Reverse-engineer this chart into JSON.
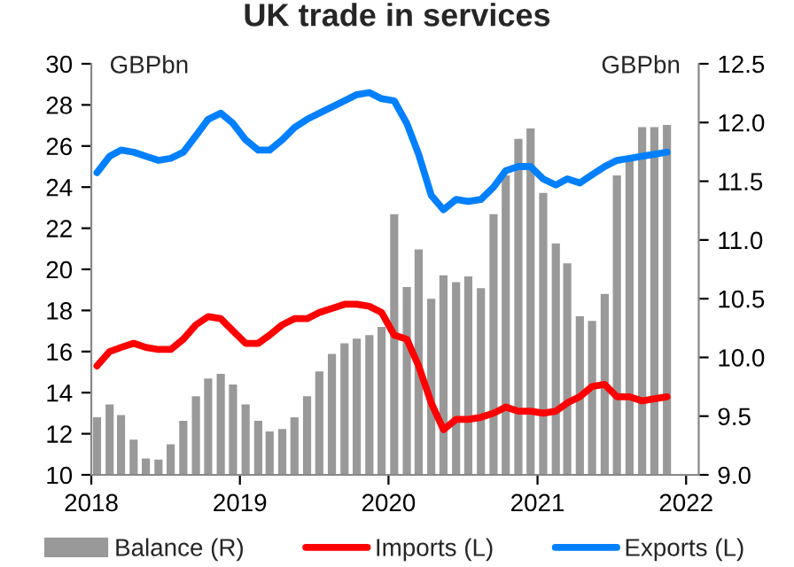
{
  "chart_data": {
    "type": "bar",
    "title": "UK trade in services",
    "ylabel": "GBPbn",
    "y2label": "GBPbn",
    "x": [
      "2018-01-15",
      "2018-02-15",
      "2018-03-15",
      "2018-04-15",
      "2018-05-15",
      "2018-06-15",
      "2018-07-15",
      "2018-08-15",
      "2018-09-15",
      "2018-10-15",
      "2018-11-15",
      "2018-12-15",
      "2019-01-15",
      "2019-02-15",
      "2019-03-15",
      "2019-04-15",
      "2019-05-15",
      "2019-06-15",
      "2019-07-15",
      "2019-08-15",
      "2019-09-15",
      "2019-10-15",
      "2019-11-15",
      "2019-12-15",
      "2020-01-15",
      "2020-02-15",
      "2020-03-15",
      "2020-04-15",
      "2020-05-15",
      "2020-06-15",
      "2020-07-15",
      "2020-08-15",
      "2020-09-15",
      "2020-10-15",
      "2020-11-15",
      "2020-12-15",
      "2021-01-15",
      "2021-02-15",
      "2021-03-15",
      "2021-04-15",
      "2021-05-15",
      "2021-06-15",
      "2021-07-15",
      "2021-08-15",
      "2021-09-15",
      "2021-10-15",
      "2021-11-15"
    ],
    "series": [
      {
        "name": "Balance (R)",
        "axis": "y2",
        "color": "#999999",
        "values": [
          9.49,
          9.6,
          9.51,
          9.3,
          9.14,
          9.13,
          9.26,
          9.46,
          9.67,
          9.82,
          9.86,
          9.77,
          9.6,
          9.46,
          9.37,
          9.39,
          9.49,
          9.67,
          9.88,
          10.03,
          10.12,
          10.16,
          10.19,
          10.26,
          11.22,
          10.6,
          10.92,
          10.5,
          10.7,
          10.64,
          10.69,
          10.59,
          11.22,
          11.55,
          11.86,
          11.95,
          11.4,
          10.97,
          10.8,
          10.35,
          10.31,
          10.54,
          11.55,
          11.7,
          11.96,
          11.96,
          11.98
        ]
      },
      {
        "name": "Imports (L)",
        "type": "line",
        "color": "#ff0000",
        "values": [
          15.3,
          16.0,
          16.2,
          16.4,
          16.2,
          16.1,
          16.1,
          16.6,
          17.3,
          17.7,
          17.6,
          17.0,
          16.4,
          16.4,
          16.8,
          17.3,
          17.6,
          17.6,
          17.9,
          18.1,
          18.3,
          18.3,
          18.2,
          17.9,
          16.8,
          16.6,
          15.3,
          13.5,
          12.2,
          12.7,
          12.7,
          12.8,
          13.0,
          13.3,
          13.1,
          13.1,
          13.0,
          13.1,
          13.5,
          13.8,
          14.3,
          14.4,
          13.8,
          13.8,
          13.6,
          13.7,
          13.8
        ]
      },
      {
        "name": "Exports (L)",
        "type": "line",
        "color": "#0080ff",
        "values": [
          24.7,
          25.5,
          25.8,
          25.7,
          25.5,
          25.3,
          25.4,
          25.7,
          26.5,
          27.3,
          27.6,
          27.1,
          26.3,
          25.8,
          25.8,
          26.3,
          26.9,
          27.3,
          27.6,
          27.9,
          28.2,
          28.5,
          28.6,
          28.3,
          28.2,
          27.1,
          25.6,
          23.6,
          22.9,
          23.4,
          23.3,
          23.4,
          24.0,
          24.8,
          25.0,
          25.0,
          24.4,
          24.1,
          24.4,
          24.2,
          24.6,
          25.0,
          25.3,
          25.4,
          25.5,
          25.6,
          25.7
        ]
      }
    ],
    "xlim": [
      "2018-01-01",
      "2022-02-01"
    ],
    "xticks": [
      {
        "value": "2018-01-01",
        "label": "2018"
      },
      {
        "value": "2019-01-01",
        "label": "2019"
      },
      {
        "value": "2020-01-01",
        "label": "2020"
      },
      {
        "value": "2021-01-01",
        "label": "2021"
      },
      {
        "value": "2022-01-01",
        "label": "2022"
      }
    ],
    "ylim": [
      10,
      30
    ],
    "yticks": [
      10,
      12,
      14,
      16,
      18,
      20,
      22,
      24,
      26,
      28,
      30
    ],
    "y2lim": [
      9.0,
      12.5
    ],
    "y2ticks": [
      {
        "value": 9.0,
        "label": "9.0"
      },
      {
        "value": 9.5,
        "label": "9.5"
      },
      {
        "value": 10.0,
        "label": "10.0"
      },
      {
        "value": 10.5,
        "label": "10.5"
      },
      {
        "value": 11.0,
        "label": "11.0"
      },
      {
        "value": 11.5,
        "label": "11.5"
      },
      {
        "value": 12.0,
        "label": "12.0"
      },
      {
        "value": 12.5,
        "label": "12.5"
      }
    ],
    "grid": false,
    "legend": "bottom"
  }
}
